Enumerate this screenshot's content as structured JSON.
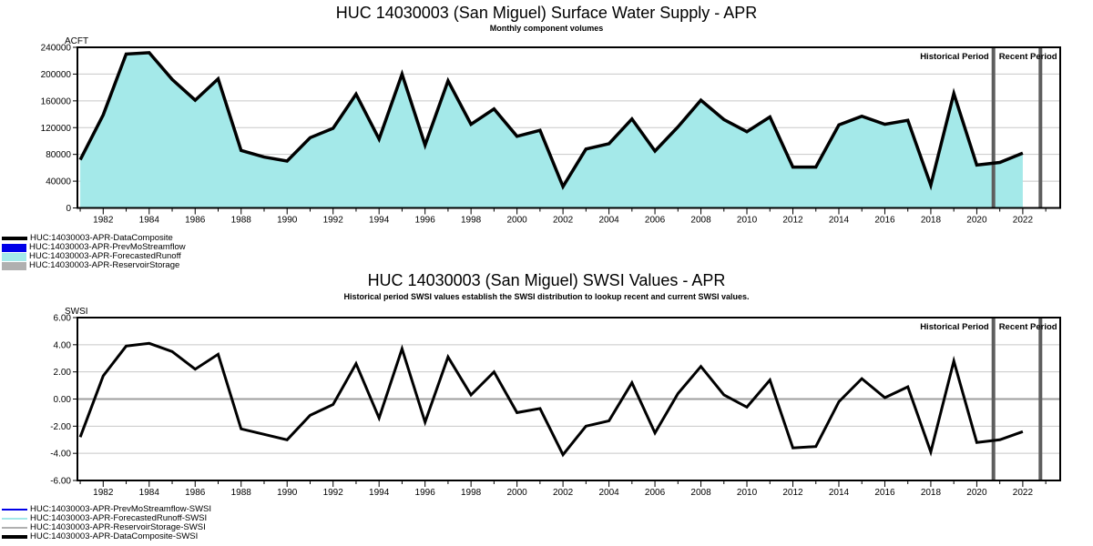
{
  "chart_data": [
    {
      "id": "surface-water-supply",
      "type": "area",
      "title": "HUC 14030003 (San Miguel) Surface Water Supply - APR",
      "subtitle": "Monthly component volumes",
      "ylabel": "ACFT",
      "ylim": [
        0,
        240000
      ],
      "yticks": [
        0,
        40000,
        80000,
        120000,
        160000,
        200000,
        240000
      ],
      "ytick_labels": [
        "0",
        "40000",
        "80000",
        "120000",
        "160000",
        "200000",
        "240000"
      ],
      "xtick_years": [
        1982,
        1984,
        1986,
        1988,
        1990,
        1992,
        1994,
        1996,
        1998,
        2000,
        2002,
        2004,
        2006,
        2008,
        2010,
        2012,
        2014,
        2016,
        2018,
        2020,
        2022
      ],
      "minor_tick_start": 1981,
      "minor_tick_end": 2023,
      "years": [
        1981,
        1982,
        1983,
        1984,
        1985,
        1986,
        1987,
        1988,
        1989,
        1990,
        1991,
        1992,
        1993,
        1994,
        1995,
        1996,
        1997,
        1998,
        1999,
        2000,
        2001,
        2002,
        2003,
        2004,
        2005,
        2006,
        2007,
        2008,
        2009,
        2010,
        2011,
        2012,
        2013,
        2014,
        2015,
        2016,
        2017,
        2018,
        2019,
        2020,
        2021,
        2022
      ],
      "values": [
        72000,
        139000,
        230000,
        232000,
        192000,
        161000,
        193000,
        86000,
        76000,
        70000,
        105000,
        119000,
        170000,
        103000,
        200000,
        94000,
        190000,
        125000,
        148000,
        107000,
        116000,
        32000,
        88000,
        96000,
        133000,
        85000,
        121000,
        161000,
        132000,
        114000,
        136000,
        61000,
        61000,
        124000,
        137000,
        125000,
        131000,
        34000,
        171000,
        64000,
        68000,
        82000
      ],
      "line_color": "#000000",
      "line_width": 3.5,
      "fill_color": "#A4E9E9",
      "grid_color": "#C8C8C8",
      "zero_line_color": "#C8C8C8",
      "annotations": {
        "historical_label": "Historical Period",
        "recent_label": "Recent Period"
      },
      "legend": [
        {
          "label": "HUC:14030003-APR-DataComposite",
          "color": "#000000",
          "swatch": "thick-line"
        },
        {
          "label": "HUC:14030003-APR-PrevMoStreamflow",
          "color": "#0000E8",
          "swatch": "box"
        },
        {
          "label": "HUC:14030003-APR-ForecastedRunoff",
          "color": "#A4E9E9",
          "swatch": "box"
        },
        {
          "label": "HUC:14030003-APR-ReservoirStorage",
          "color": "#B0B0B0",
          "swatch": "box"
        }
      ]
    },
    {
      "id": "swsi-values",
      "type": "line",
      "title": "HUC 14030003 (San Miguel) SWSI Values - APR",
      "subtitle": "Historical period SWSI values establish the SWSI distribution to lookup recent and current SWSI values.",
      "ylabel": "SWSI",
      "ylim": [
        -6,
        6
      ],
      "yticks": [
        -6,
        -4,
        -2,
        0,
        2,
        4,
        6
      ],
      "ytick_labels": [
        "-6.00",
        "-4.00",
        "-2.00",
        "0.00",
        "2.00",
        "4.00",
        "6.00"
      ],
      "xtick_years": [
        1982,
        1984,
        1986,
        1988,
        1990,
        1992,
        1994,
        1996,
        1998,
        2000,
        2002,
        2004,
        2006,
        2008,
        2010,
        2012,
        2014,
        2016,
        2018,
        2020,
        2022
      ],
      "minor_tick_start": 1981,
      "minor_tick_end": 2023,
      "years": [
        1981,
        1982,
        1983,
        1984,
        1985,
        1986,
        1987,
        1988,
        1989,
        1990,
        1991,
        1992,
        1993,
        1994,
        1995,
        1996,
        1997,
        1998,
        1999,
        2000,
        2001,
        2002,
        2003,
        2004,
        2005,
        2006,
        2007,
        2008,
        2009,
        2010,
        2011,
        2012,
        2013,
        2014,
        2015,
        2016,
        2017,
        2018,
        2019,
        2020,
        2021,
        2022
      ],
      "values": [
        -2.8,
        1.7,
        3.9,
        4.1,
        3.5,
        2.2,
        3.3,
        -2.2,
        -2.6,
        -3.0,
        -1.2,
        -0.4,
        2.6,
        -1.4,
        3.7,
        -1.7,
        3.1,
        0.3,
        2.0,
        -1.0,
        -0.7,
        -4.1,
        -2.0,
        -1.6,
        1.2,
        -2.5,
        0.4,
        2.4,
        0.3,
        -0.6,
        1.4,
        -3.6,
        -3.5,
        -0.2,
        1.5,
        0.1,
        0.9,
        -3.9,
        2.8,
        -3.2,
        -3.0,
        -2.4
      ],
      "line_color": "#000000",
      "line_width": 3,
      "fill_color": null,
      "grid_color": "#C8C8C8",
      "zero_line_color": "#9E9E9E",
      "annotations": {
        "historical_label": "Historical Period",
        "recent_label": "Recent Period"
      },
      "legend": [
        {
          "label": "HUC:14030003-APR-PrevMoStreamflow-SWSI",
          "color": "#0000E8",
          "swatch": "line"
        },
        {
          "label": "HUC:14030003-APR-ForecastedRunoff-SWSI",
          "color": "#A4E9E9",
          "swatch": "line"
        },
        {
          "label": "HUC:14030003-APR-ReservoirStorage-SWSI",
          "color": "#B0B0B0",
          "swatch": "line"
        },
        {
          "label": "HUC:14030003-APR-DataComposite-SWSI",
          "color": "#000000",
          "swatch": "thick-line"
        }
      ]
    }
  ],
  "divider_color": "#5E5E5E"
}
